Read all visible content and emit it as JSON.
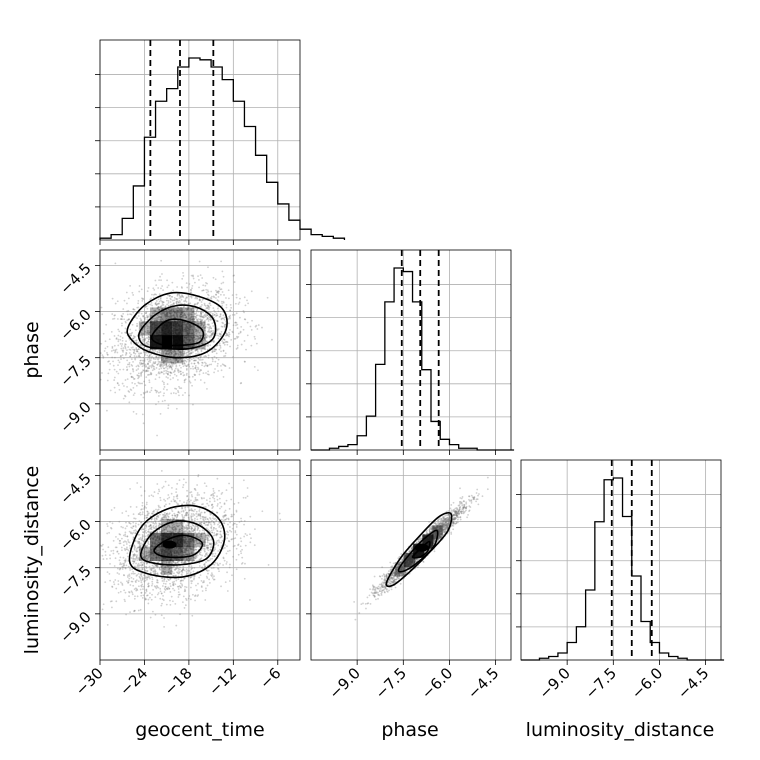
{
  "chart_data": {
    "type": "corner",
    "params": [
      {
        "name": "geocent_time",
        "label": "geocent_time",
        "range": [
          -30,
          -3
        ],
        "ticks": [
          -30,
          -24,
          -18,
          -12,
          -6
        ],
        "tick_labels": [
          "−30",
          "−24",
          "−18",
          "−12",
          "−6"
        ],
        "quantiles": [
          -23.2,
          -19.2,
          -14.7
        ],
        "hist": {
          "start": -30,
          "width": 1.5,
          "counts": [
            1,
            3,
            12,
            30,
            57,
            77,
            84,
            96,
            101,
            100,
            96,
            89,
            77,
            63,
            47,
            32,
            20,
            11,
            6,
            3,
            2,
            1
          ]
        }
      },
      {
        "name": "phase",
        "label": "phase",
        "range": [
          -10.5,
          -4
        ],
        "ticks": [
          -9.0,
          -7.5,
          -6.0,
          -4.5
        ],
        "tick_labels": [
          "−9.0",
          "−7.5",
          "−6.0",
          "−4.5"
        ],
        "quantiles": [
          -7.55,
          -6.95,
          -6.35
        ],
        "hist": {
          "start": -10.5,
          "width": 0.3,
          "counts": [
            0,
            0,
            1,
            2,
            3,
            8,
            19,
            48,
            83,
            102,
            100,
            83,
            45,
            16,
            6,
            3,
            1,
            1,
            0,
            0,
            0,
            0
          ]
        }
      },
      {
        "name": "luminosity_distance",
        "label": "luminosity_distance",
        "range": [
          -10.5,
          -4
        ],
        "ticks": [
          -9.0,
          -7.5,
          -6.0,
          -4.5
        ],
        "tick_labels": [
          "−9.0",
          "−7.5",
          "−6.0",
          "−4.5"
        ],
        "quantiles": [
          -7.55,
          -6.9,
          -6.25
        ],
        "hist": {
          "start": -10.5,
          "width": 0.3,
          "counts": [
            0,
            0,
            1,
            2,
            4,
            10,
            19,
            40,
            79,
            103,
            104,
            82,
            48,
            22,
            10,
            4,
            2,
            1,
            0,
            0,
            0,
            0
          ]
        }
      }
    ],
    "pairs": [
      {
        "x": "geocent_time",
        "y": "phase",
        "center": [
          -20,
          -6.8
        ],
        "sd": [
          4,
          0.8
        ],
        "rho": 0.25,
        "contours": [
          [
            [
              -26.2,
              -6.5
            ],
            [
              -24,
              -5.8
            ],
            [
              -20.5,
              -5.4
            ],
            [
              -16.8,
              -5.5
            ],
            [
              -13.5,
              -5.9
            ],
            [
              -13,
              -6.6
            ],
            [
              -15.5,
              -7.3
            ],
            [
              -19.5,
              -7.5
            ],
            [
              -23.5,
              -7.3
            ],
            [
              -25.8,
              -6.9
            ]
          ],
          [
            [
              -24.7,
              -6.7
            ],
            [
              -22.5,
              -6.1
            ],
            [
              -19.5,
              -5.8
            ],
            [
              -16.5,
              -5.9
            ],
            [
              -14.6,
              -6.3
            ],
            [
              -14.8,
              -6.9
            ],
            [
              -17.8,
              -7.2
            ],
            [
              -21.5,
              -7.2
            ],
            [
              -24,
              -7.1
            ]
          ],
          [
            [
              -23,
              -6.8
            ],
            [
              -21,
              -6.3
            ],
            [
              -18.5,
              -6.3
            ],
            [
              -16.2,
              -6.6
            ],
            [
              -16.6,
              -7
            ],
            [
              -19.5,
              -7.1
            ],
            [
              -22,
              -7.05
            ]
          ]
        ],
        "heat_cells": [
          [
            -24,
            -6.55,
            0.3
          ],
          [
            -22.5,
            -6.55,
            0.7
          ],
          [
            -21,
            -6.55,
            0.85
          ],
          [
            -19.5,
            -6.55,
            0.75
          ],
          [
            -18,
            -6.55,
            0.55
          ],
          [
            -16.5,
            -6.55,
            0.3
          ],
          [
            -22.5,
            -7.0,
            0.9
          ],
          [
            -21,
            -7.0,
            1.0
          ],
          [
            -19.5,
            -7.0,
            0.95
          ],
          [
            -18,
            -7.0,
            0.6
          ],
          [
            -16.5,
            -7.0,
            0.3
          ],
          [
            -22.5,
            -6.1,
            0.3
          ],
          [
            -21,
            -6.1,
            0.45
          ],
          [
            -19.5,
            -6.1,
            0.45
          ],
          [
            -18,
            -6.1,
            0.35
          ],
          [
            -21,
            -7.45,
            0.35
          ],
          [
            -19.5,
            -7.45,
            0.35
          ]
        ]
      },
      {
        "x": "geocent_time",
        "y": "luminosity_distance",
        "center": [
          -20,
          -6.8
        ],
        "sd": [
          4,
          0.8
        ],
        "rho": 0.28,
        "contours": [
          [
            [
              -26,
              -7.3
            ],
            [
              -24.5,
              -6.2
            ],
            [
              -21,
              -5.6
            ],
            [
              -17,
              -5.5
            ],
            [
              -14,
              -5.9
            ],
            [
              -13.2,
              -6.6
            ],
            [
              -15,
              -7.4
            ],
            [
              -18.8,
              -7.8
            ],
            [
              -23.5,
              -7.7
            ]
          ],
          [
            [
              -24.5,
              -7.1
            ],
            [
              -23,
              -6.4
            ],
            [
              -20,
              -6.0
            ],
            [
              -16.8,
              -6.1
            ],
            [
              -14.7,
              -6.6
            ],
            [
              -15.6,
              -7.2
            ],
            [
              -19,
              -7.4
            ],
            [
              -22.8,
              -7.35
            ]
          ],
          [
            [
              -22.7,
              -6.95
            ],
            [
              -21,
              -6.6
            ],
            [
              -18.5,
              -6.45
            ],
            [
              -16.2,
              -6.7
            ],
            [
              -17.5,
              -7.1
            ],
            [
              -21,
              -7.15
            ]
          ]
        ],
        "heat_cells": [
          [
            -22.5,
            -6.6,
            0.55
          ],
          [
            -21,
            -6.6,
            0.8
          ],
          [
            -19.5,
            -6.6,
            0.8
          ],
          [
            -18,
            -6.6,
            0.55
          ],
          [
            -16.5,
            -6.6,
            0.3
          ],
          [
            -22.5,
            -7.05,
            0.55
          ],
          [
            -21,
            -7.05,
            0.7
          ],
          [
            -19.5,
            -7.05,
            0.6
          ],
          [
            -18,
            -7.05,
            0.4
          ],
          [
            -24,
            -7.05,
            0.3
          ],
          [
            -21,
            -6.15,
            0.3
          ],
          [
            -19.5,
            -6.15,
            0.3
          ],
          [
            -21,
            -7.5,
            0.3
          ]
        ],
        "peak": [
          -20.6,
          -6.75
        ]
      },
      {
        "x": "phase",
        "y": "luminosity_distance",
        "center": [
          -6.9,
          -6.85
        ],
        "sd": [
          0.65,
          0.65
        ],
        "rho": 0.965,
        "contours": [
          [
            [
              -8.05,
              -8.0
            ],
            [
              -7.6,
              -7.2
            ],
            [
              -7.0,
              -6.5
            ],
            [
              -6.35,
              -5.85
            ],
            [
              -5.95,
              -5.75
            ],
            [
              -6.05,
              -6.3
            ],
            [
              -6.6,
              -6.95
            ],
            [
              -7.2,
              -7.55
            ],
            [
              -7.8,
              -8.05
            ]
          ],
          [
            [
              -7.65,
              -7.55
            ],
            [
              -7.2,
              -6.95
            ],
            [
              -6.75,
              -6.5
            ],
            [
              -6.4,
              -6.3
            ],
            [
              -6.5,
              -6.8
            ],
            [
              -7.0,
              -7.3
            ],
            [
              -7.45,
              -7.6
            ]
          ],
          [
            [
              -7.2,
              -7.15
            ],
            [
              -6.9,
              -6.85
            ],
            [
              -6.65,
              -6.65
            ],
            [
              -6.7,
              -6.95
            ],
            [
              -6.95,
              -7.15
            ]
          ]
        ],
        "heat_cells": [
          [
            -7.3,
            -7.25,
            0.55
          ],
          [
            -7.0,
            -6.95,
            0.85
          ],
          [
            -6.7,
            -6.65,
            0.75
          ],
          [
            -7.6,
            -7.55,
            0.3
          ],
          [
            -6.4,
            -6.35,
            0.35
          ]
        ],
        "peak": [
          -6.9,
          -6.85
        ]
      }
    ]
  }
}
